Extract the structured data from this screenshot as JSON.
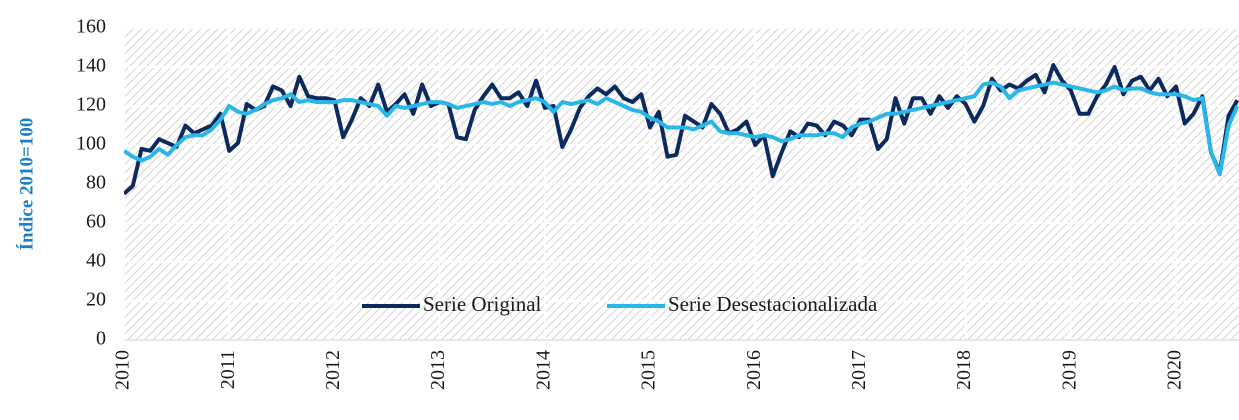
{
  "chart_data": {
    "type": "line",
    "y_label": "Índice 2010=100",
    "categories": [
      "2010",
      null,
      null,
      null,
      null,
      null,
      null,
      null,
      null,
      null,
      null,
      null,
      "2011",
      null,
      null,
      null,
      null,
      null,
      null,
      null,
      null,
      null,
      null,
      null,
      "2012",
      null,
      null,
      null,
      null,
      null,
      null,
      null,
      null,
      null,
      null,
      null,
      "2013",
      null,
      null,
      null,
      null,
      null,
      null,
      null,
      null,
      null,
      null,
      null,
      "2014",
      null,
      null,
      null,
      null,
      null,
      null,
      null,
      null,
      null,
      null,
      null,
      "2015",
      null,
      null,
      null,
      null,
      null,
      null,
      null,
      null,
      null,
      null,
      null,
      "2016",
      null,
      null,
      null,
      null,
      null,
      null,
      null,
      null,
      null,
      null,
      null,
      "2017",
      null,
      null,
      null,
      null,
      null,
      null,
      null,
      null,
      null,
      null,
      null,
      "2018",
      null,
      null,
      null,
      null,
      null,
      null,
      null,
      null,
      null,
      null,
      null,
      "2019",
      null,
      null,
      null,
      null,
      null,
      null,
      null,
      null,
      null,
      null,
      null,
      "2020",
      null,
      null,
      null,
      null,
      null,
      null,
      null
    ],
    "series": [
      {
        "name": "Serie Original",
        "color": "#0d2a5e",
        "values": [
          75,
          79,
          98,
          97,
          103,
          101,
          99,
          110,
          106,
          108,
          110,
          116,
          97,
          101,
          121,
          118,
          120,
          130,
          128,
          120,
          135,
          125,
          124,
          124,
          123,
          104,
          113,
          124,
          120,
          131,
          117,
          121,
          126,
          116,
          131,
          120,
          122,
          121,
          104,
          103,
          118,
          125,
          131,
          124,
          124,
          127,
          120,
          133,
          119,
          120,
          99,
          108,
          119,
          125,
          129,
          126,
          130,
          124,
          122,
          126,
          109,
          117,
          94,
          95,
          115,
          112,
          109,
          121,
          116,
          106,
          108,
          112,
          100,
          105,
          84,
          96,
          107,
          104,
          111,
          110,
          105,
          112,
          110,
          105,
          113,
          113,
          98,
          103,
          124,
          111,
          124,
          124,
          116,
          125,
          119,
          125,
          121,
          112,
          120,
          134,
          128,
          131,
          129,
          133,
          136,
          127,
          141,
          133,
          128,
          116,
          116,
          125,
          131,
          140,
          126,
          133,
          135,
          128,
          134,
          125,
          130,
          111,
          116,
          125,
          96,
          86,
          115,
          123
        ]
      },
      {
        "name": "Serie Desestacionalizada",
        "color": "#29b6e8",
        "values": [
          97,
          94,
          92,
          94,
          98,
          95,
          100,
          104,
          105,
          105,
          108,
          113,
          120,
          117,
          116,
          118,
          121,
          123,
          124,
          126,
          122,
          123,
          122,
          122,
          122,
          123,
          123,
          122,
          121,
          120,
          115,
          120,
          119,
          120,
          121,
          122,
          122,
          121,
          119,
          120,
          121,
          122,
          121,
          122,
          120,
          122,
          123,
          124,
          122,
          117,
          122,
          121,
          122,
          123,
          121,
          124,
          122,
          120,
          118,
          117,
          114,
          112,
          109,
          109,
          109,
          108,
          110,
          112,
          107,
          106,
          106,
          105,
          104,
          105,
          104,
          102,
          103,
          105,
          105,
          105,
          106,
          106,
          104,
          109,
          111,
          112,
          114,
          116,
          116,
          117,
          118,
          119,
          120,
          121,
          122,
          123,
          124,
          125,
          131,
          132,
          130,
          124,
          128,
          129,
          130,
          131,
          132,
          131,
          130,
          129,
          128,
          127,
          128,
          130,
          128,
          129,
          129,
          127,
          126,
          126,
          126,
          125,
          123,
          124,
          96,
          85,
          110,
          120
        ]
      }
    ],
    "ylim": [
      0,
      160
    ],
    "yticks": [
      0,
      20,
      40,
      60,
      80,
      100,
      120,
      140,
      160
    ],
    "legend": "bottom"
  }
}
